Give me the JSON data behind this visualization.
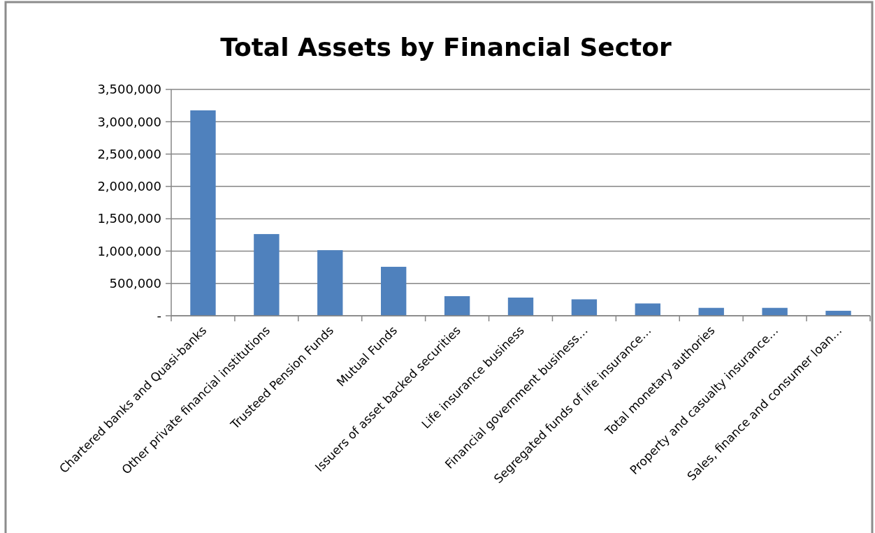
{
  "chart_data": {
    "type": "bar",
    "title": "Total Assets by Financial Sector",
    "categories": [
      "Chartered banks and Quasi-banks",
      "Other private financial institutions",
      "Trusteed Pension Funds",
      "Mutual Funds",
      "Issuers of asset backed securities",
      "Life insurance business",
      "Financial government business…",
      "Segregated funds of life insurance…",
      "Total monetary authories",
      "Property and casualty insurance…",
      "Sales, finance and consumer loan…"
    ],
    "values": [
      3176000,
      1263000,
      1014000,
      757000,
      303000,
      281000,
      254000,
      190000,
      122000,
      122000,
      77000
    ],
    "color": "#4f81bd",
    "ylim": [
      0,
      3500000
    ],
    "yticks": [
      {
        "value": 0,
        "label": "-"
      },
      {
        "value": 500000,
        "label": "500,000"
      },
      {
        "value": 1000000,
        "label": "1,000,000"
      },
      {
        "value": 1500000,
        "label": "1,500,000"
      },
      {
        "value": 2000000,
        "label": "2,000,000"
      },
      {
        "value": 2500000,
        "label": "2,500,000"
      },
      {
        "value": 3000000,
        "label": "3,000,000"
      },
      {
        "value": 3500000,
        "label": "3,500,000"
      }
    ],
    "grid": "y"
  }
}
